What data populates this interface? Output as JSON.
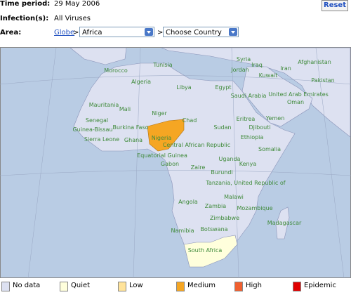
{
  "header": {
    "time_period": {
      "label": "Time period:",
      "value": "29 May 2006"
    },
    "infections": {
      "label": "Infection(s):",
      "value": "All Viruses"
    },
    "area": {
      "label": "Area:",
      "link": "Globe",
      "separator": ">",
      "region": "Africa",
      "country": "Choose Country"
    },
    "reset": "Reset"
  },
  "map": {
    "labels": [
      "Syria",
      "Iraq",
      "Iran",
      "Afghanistan",
      "Tunisia",
      "Morocco",
      "Jordan",
      "Kuwait",
      "Pakistan",
      "Algeria",
      "Libya",
      "Egypt",
      "Saudi Arabia",
      "United Arab Emirates",
      "Oman",
      "Mauritania",
      "Mali",
      "Niger",
      "Chad",
      "Sudan",
      "Eritrea",
      "Yemen",
      "Senegal",
      "Djibouti",
      "Burkina Faso",
      "Guinea-Bissau",
      "Nigeria",
      "Ethiopia",
      "Sierra Leone",
      "Ghana",
      "Central African Republic",
      "Somalia",
      "Equatorial Guinea",
      "Gabon",
      "Uganda",
      "Kenya",
      "Zaire",
      "Burundi",
      "Tanzania, United Republic of",
      "Malawi",
      "Angola",
      "Zambia",
      "Mozambique",
      "Zimbabwe",
      "Namibia",
      "Botswana",
      "Madagascar",
      "South Africa"
    ]
  },
  "legend": [
    "No data",
    "Quiet",
    "Low",
    "Medium",
    "High",
    "Epidemic"
  ]
}
